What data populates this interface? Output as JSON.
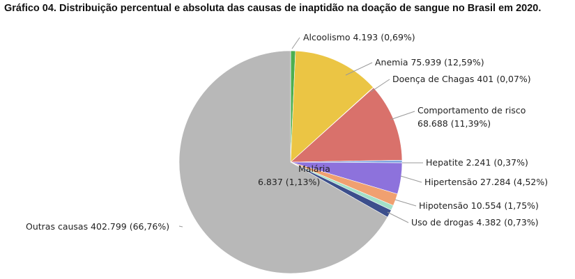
{
  "title": "Gráfico 04. Distribuição percentual e absoluta  das causas de inaptidão na doação de sangue no Brasil em 2020.",
  "chart_data": {
    "type": "pie",
    "title": "Gráfico 04. Distribuição percentual e absoluta  das causas de inaptidão na doação de sangue no Brasil em 2020.",
    "slices": [
      {
        "label": "Alcoolismo",
        "value": 4193,
        "value_text": "4.193",
        "percent_text": "0,69%",
        "color": "#4caf50"
      },
      {
        "label": "Anemia",
        "value": 75939,
        "value_text": "75.939",
        "percent_text": "12,59%",
        "color": "#ebc544"
      },
      {
        "label": "Doença de Chagas",
        "value": 401,
        "value_text": "401",
        "percent_text": "0,07%",
        "color": "#7a5a1e"
      },
      {
        "label": "Comportamento de risco",
        "value": 68688,
        "value_text": "68.688",
        "percent_text": "11,39%",
        "color": "#d9716b"
      },
      {
        "label": "Hepatite",
        "value": 2241,
        "value_text": "2.241",
        "percent_text": "0,37%",
        "color": "#7ea6e0"
      },
      {
        "label": "Hipertensão",
        "value": 27284,
        "value_text": "27.284",
        "percent_text": "4,52%",
        "color": "#8d72dc"
      },
      {
        "label": "Hipotensão",
        "value": 10554,
        "value_text": "10.554",
        "percent_text": "1,75%",
        "color": "#f0a070"
      },
      {
        "label": "Uso de drogas",
        "value": 4382,
        "value_text": "4.382",
        "percent_text": "0,73%",
        "color": "#a3e0c8"
      },
      {
        "label": "Malária",
        "value": 6837,
        "value_text": "6.837",
        "percent_text": "1,13%",
        "color": "#3c4f8c"
      },
      {
        "label": "Outras causas",
        "value": 402799,
        "value_text": "402.799",
        "percent_text": "66,76%",
        "color": "#b8b8b8"
      }
    ]
  }
}
